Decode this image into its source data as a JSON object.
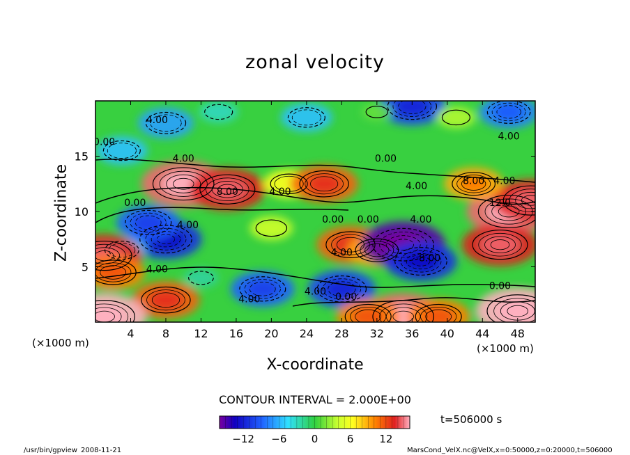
{
  "chart_data": {
    "type": "heatmap",
    "title": "zonal velocity",
    "xlabel": "X-coordinate",
    "ylabel": "Z-coordinate",
    "x_unit": "(×1000 m)",
    "z_unit": "(×1000 m)",
    "xlim": [
      0,
      50
    ],
    "ylim": [
      0,
      20
    ],
    "x_ticks": [
      4,
      8,
      12,
      16,
      20,
      24,
      28,
      32,
      36,
      40,
      44,
      48
    ],
    "y_ticks": [
      5,
      10,
      15
    ],
    "contour_interval_text": "CONTOUR INTERVAL = 2.000E+00",
    "contour_labels": [
      "4.00",
      "0.00",
      "4.00",
      "0.00",
      "4.00",
      "8.00",
      "4.00",
      "4.00",
      "0.00",
      "0.00",
      "12.0",
      "4.00",
      "4.00",
      "8.00",
      "4.00",
      "4.00",
      "0.00",
      "0.00",
      "0.00",
      "4.00",
      "8.00",
      "4.00",
      "4.00"
    ],
    "colorbar": {
      "range": [
        -16,
        16
      ],
      "tick_values": [
        -12,
        -6,
        0,
        6,
        12
      ],
      "tick_labels": [
        "−12",
        "−6",
        "0",
        "6",
        "12"
      ]
    },
    "time_text": "t=506000 s",
    "features": [
      {
        "x": 8,
        "z": 7.5,
        "value": -11
      },
      {
        "x": 6,
        "z": 9,
        "value": -9
      },
      {
        "x": 3,
        "z": 6.5,
        "value": -5
      },
      {
        "x": 1,
        "z": 6,
        "value": 12
      },
      {
        "x": 2,
        "z": 4.5,
        "value": 9
      },
      {
        "x": 8,
        "z": 2,
        "value": 10
      },
      {
        "x": 10,
        "z": 12.5,
        "value": 14
      },
      {
        "x": 15,
        "z": 12,
        "value": 12
      },
      {
        "x": 22,
        "z": 12.5,
        "value": 6
      },
      {
        "x": 26,
        "z": 12.5,
        "value": 10
      },
      {
        "x": 20,
        "z": 8.5,
        "value": 4
      },
      {
        "x": 29,
        "z": 7,
        "value": 10
      },
      {
        "x": 32,
        "z": 6.5,
        "value": 8
      },
      {
        "x": 28,
        "z": 3,
        "value": -10
      },
      {
        "x": 35,
        "z": 7,
        "value": -15
      },
      {
        "x": 37,
        "z": 5.5,
        "value": -11
      },
      {
        "x": 35,
        "z": 0.5,
        "value": 14
      },
      {
        "x": 31,
        "z": 0.5,
        "value": 9
      },
      {
        "x": 39,
        "z": 0.5,
        "value": 9
      },
      {
        "x": 47,
        "z": 10,
        "value": 14
      },
      {
        "x": 46,
        "z": 7,
        "value": 12
      },
      {
        "x": 49.5,
        "z": 11,
        "value": 12
      },
      {
        "x": 43,
        "z": 12.5,
        "value": 8
      },
      {
        "x": 48,
        "z": 1,
        "value": 16
      },
      {
        "x": 1,
        "z": 0.5,
        "value": 16
      },
      {
        "x": 19,
        "z": 3,
        "value": -9
      },
      {
        "x": 12,
        "z": 4,
        "value": -2
      },
      {
        "x": 8,
        "z": 18,
        "value": -7
      },
      {
        "x": 24,
        "z": 18.5,
        "value": -6
      },
      {
        "x": 36,
        "z": 19.5,
        "value": -10
      },
      {
        "x": 47,
        "z": 19,
        "value": -8
      },
      {
        "x": 3,
        "z": 15.5,
        "value": -6
      },
      {
        "x": 14,
        "z": 19,
        "value": -3
      },
      {
        "x": 32,
        "z": 19,
        "value": 1
      },
      {
        "x": 41,
        "z": 18.5,
        "value": 3
      }
    ]
  },
  "footer": {
    "left_path": "/usr/bin/gpview",
    "left_date": "2008-11-21",
    "right_text": "MarsCond_VelX.nc@VelX,x=0:50000,z=0:20000,t=506000"
  }
}
